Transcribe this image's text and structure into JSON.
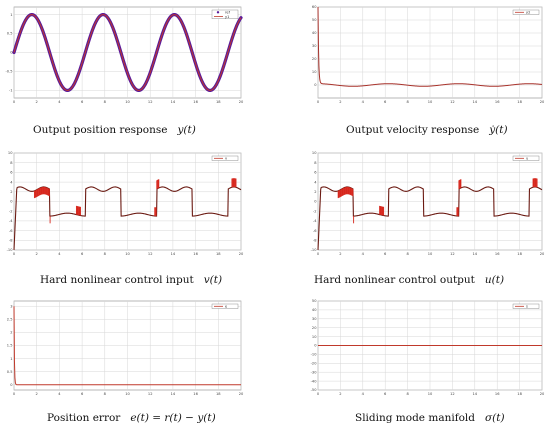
{
  "palette": {
    "reference_marker": "#5a1a9a",
    "output_line": "#c0392b",
    "input_line": "#d7261c",
    "dark_line": "#6b1a12",
    "velocity_line": "#a8322b"
  },
  "chart_data": [
    {
      "id": "position",
      "type": "line",
      "caption": "Output position response",
      "symbol": "y(t)",
      "xlim": [
        0,
        20
      ],
      "ylim": [
        -1.2,
        1.2
      ],
      "xticks": [
        0,
        2,
        4,
        6,
        8,
        10,
        12,
        14,
        16,
        18,
        20
      ],
      "yticks": [
        -1,
        -0.5,
        0,
        0.5,
        1
      ],
      "legend": [
        "ref",
        "y1"
      ],
      "grid": true,
      "legend_position": "top-right",
      "series": [
        {
          "name": "ref",
          "kind": "sine",
          "amplitude": 1,
          "period": 6.28,
          "style": "markers"
        },
        {
          "name": "y1",
          "kind": "sine",
          "amplitude": 1,
          "period": 6.28,
          "style": "line"
        }
      ]
    },
    {
      "id": "velocity",
      "type": "line",
      "caption": "Output velocity response",
      "symbol": "ẏ(t)",
      "xlim": [
        0,
        20
      ],
      "ylim": [
        -10,
        60
      ],
      "xticks": [
        0,
        2,
        4,
        6,
        8,
        10,
        12,
        14,
        16,
        18,
        20
      ],
      "yticks": [
        0,
        10,
        20,
        30,
        40,
        50,
        60
      ],
      "legend": [
        "y2"
      ],
      "grid": true,
      "legend_position": "top-right",
      "series": [
        {
          "name": "y2",
          "kind": "cosine",
          "amplitude": 1,
          "period": 6.28,
          "start_value": 60
        }
      ]
    },
    {
      "id": "control-input",
      "type": "line",
      "caption": "Hard nonlinear control input",
      "symbol": "v(t)",
      "xlim": [
        0,
        20
      ],
      "ylim": [
        -10,
        10
      ],
      "xticks": [
        0,
        2,
        4,
        6,
        8,
        10,
        12,
        14,
        16,
        18,
        20
      ],
      "yticks": [
        -10,
        -8,
        -6,
        -4,
        -2,
        0,
        2,
        4,
        6,
        8,
        10
      ],
      "legend": [
        "v"
      ],
      "grid": true,
      "legend_position": "top-right",
      "series": [
        {
          "name": "v",
          "kind": "control",
          "high": 3,
          "low": -3,
          "start_value": -10
        }
      ]
    },
    {
      "id": "control-output",
      "type": "line",
      "caption": "Hard nonlinear control output",
      "symbol": "u(t)",
      "xlim": [
        0,
        20
      ],
      "ylim": [
        -10,
        10
      ],
      "xticks": [
        0,
        2,
        4,
        6,
        8,
        10,
        12,
        14,
        16,
        18,
        20
      ],
      "yticks": [
        -10,
        -8,
        -6,
        -4,
        -2,
        0,
        2,
        4,
        6,
        8,
        10
      ],
      "legend": [
        "u"
      ],
      "grid": true,
      "legend_position": "top-right",
      "series": [
        {
          "name": "u",
          "kind": "control",
          "high": 3,
          "low": -3,
          "start_value": -10
        }
      ]
    },
    {
      "id": "position-error",
      "type": "line",
      "caption": "Position error",
      "symbol": "e(t) = r(t) − y(t)",
      "xlim": [
        0,
        20
      ],
      "ylim": [
        -0.2,
        3.2
      ],
      "xticks": [
        0,
        2,
        4,
        6,
        8,
        10,
        12,
        14,
        16,
        18,
        20
      ],
      "yticks": [
        0,
        0.5,
        1,
        1.5,
        2,
        2.5,
        3
      ],
      "legend": [
        "e"
      ],
      "grid": true,
      "legend_position": "top-right",
      "series": [
        {
          "name": "e",
          "kind": "decay",
          "start_value": 3,
          "final_value": 0
        }
      ]
    },
    {
      "id": "sliding-manifold",
      "type": "line",
      "caption": "Sliding mode manifold",
      "symbol": "σ(t)",
      "xlim": [
        0,
        20
      ],
      "ylim": [
        -50,
        50
      ],
      "xticks": [
        0,
        2,
        4,
        6,
        8,
        10,
        12,
        14,
        16,
        18,
        20
      ],
      "yticks": [
        -50,
        -40,
        -30,
        -20,
        -10,
        0,
        10,
        20,
        30,
        40,
        50
      ],
      "legend": [
        "s"
      ],
      "grid": true,
      "legend_position": "top-right",
      "series": [
        {
          "name": "s",
          "kind": "constant",
          "value": 0
        }
      ]
    }
  ]
}
